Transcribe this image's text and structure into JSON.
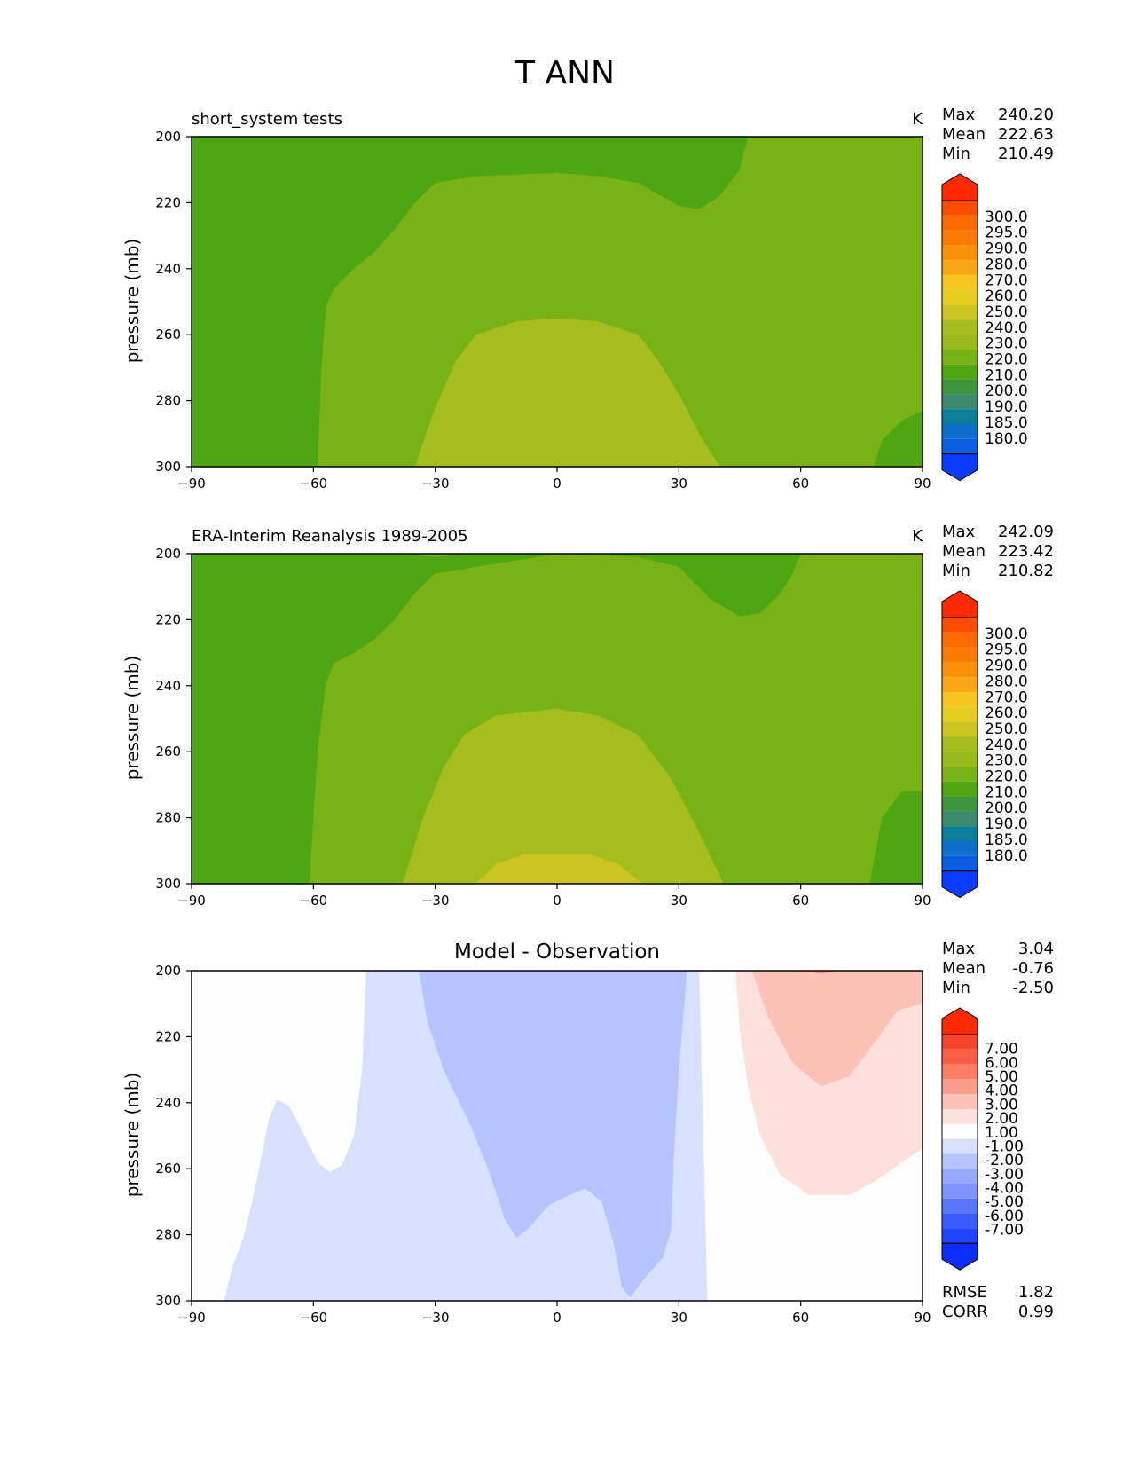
{
  "figure": {
    "title": "T ANN"
  },
  "colors": {
    "abs_levels": [
      "#0a3dff",
      "#0a5ee0",
      "#0e6fcc",
      "#0b7f99",
      "#3a8a6c",
      "#3f9440",
      "#4ea612",
      "#79b215",
      "#99b81a",
      "#a6be1d",
      "#cbc521",
      "#e6cd22",
      "#f8c420",
      "#fba615",
      "#fb9009",
      "#fd7a05",
      "#ff6a00",
      "#ff4d00",
      "#ff2a00"
    ],
    "diff_levels": [
      "#0a2eff",
      "#1f45ff",
      "#3a5cff",
      "#5975ff",
      "#7d92ff",
      "#97a8ff",
      "#b5c3fe",
      "#d8e0fe",
      "#ffffff",
      "#fde0dc",
      "#fdc2b7",
      "#fc9e8c",
      "#fb7f66",
      "#f95e45",
      "#f5452a",
      "#ff2a00"
    ],
    "frame": "#000000"
  },
  "colorbars": {
    "absolute": [
      "300.0",
      "295.0",
      "290.0",
      "280.0",
      "270.0",
      "260.0",
      "250.0",
      "240.0",
      "230.0",
      "220.0",
      "210.0",
      "200.0",
      "190.0",
      "185.0",
      "180.0"
    ],
    "difference": [
      "7.00",
      "6.00",
      "5.00",
      "4.00",
      "3.00",
      "2.00",
      "1.00",
      "-1.00",
      "-2.00",
      "-3.00",
      "-4.00",
      "-5.00",
      "-6.00",
      "-7.00"
    ]
  },
  "chart_data": [
    {
      "type": "heatmap",
      "title": "short_system tests",
      "units": "K",
      "xlabel": "",
      "ylabel": "pressure (mb)",
      "xlim": [
        -90,
        90
      ],
      "ylim": [
        300,
        200
      ],
      "xticks": [
        "−90",
        "−60",
        "−30",
        "0",
        "30",
        "60",
        "90"
      ],
      "yticks": [
        "200",
        "220",
        "240",
        "260",
        "280",
        "300"
      ],
      "stats": {
        "max_label": "Max",
        "max": "240.20",
        "mean_label": "Mean",
        "mean": "222.63",
        "min_label": "Min",
        "min": "210.49"
      },
      "contour_boundaries": [
        {
          "name": "220",
          "points": [
            [
              -90,
              200
            ],
            [
              47,
              200
            ],
            [
              45,
              210
            ],
            [
              40,
              218
            ],
            [
              35,
              222
            ],
            [
              30,
              221
            ],
            [
              20,
              214
            ],
            [
              10,
              212
            ],
            [
              0,
              211
            ],
            [
              -20,
              212
            ],
            [
              -30,
              214
            ],
            [
              -35,
              220
            ],
            [
              -40,
              228
            ],
            [
              -45,
              235
            ],
            [
              -50,
              240
            ],
            [
              -55,
              246
            ],
            [
              -57,
              252
            ],
            [
              -58,
              270
            ],
            [
              -59,
              300
            ],
            [
              -90,
              300
            ]
          ]
        },
        {
          "name": "230",
          "points": [
            [
              -35,
              300
            ],
            [
              -30,
              282
            ],
            [
              -25,
              268
            ],
            [
              -20,
              260
            ],
            [
              -10,
              256
            ],
            [
              0,
              255
            ],
            [
              10,
              256
            ],
            [
              20,
              260
            ],
            [
              25,
              268
            ],
            [
              30,
              278
            ],
            [
              35,
              290
            ],
            [
              40,
              300
            ]
          ]
        },
        {
          "name": "220 (NE corner)",
          "points": [
            [
              90,
              283
            ],
            [
              85,
              286
            ],
            [
              80,
              292
            ],
            [
              78,
              300
            ],
            [
              90,
              300
            ]
          ]
        }
      ]
    },
    {
      "type": "heatmap",
      "title": "ERA-Interim Reanalysis 1989-2005",
      "units": "K",
      "xlabel": "",
      "ylabel": "pressure (mb)",
      "xlim": [
        -90,
        90
      ],
      "ylim": [
        300,
        200
      ],
      "xticks": [
        "−90",
        "−60",
        "−30",
        "0",
        "30",
        "60",
        "90"
      ],
      "yticks": [
        "200",
        "220",
        "240",
        "260",
        "280",
        "300"
      ],
      "stats": {
        "max_label": "Max",
        "max": "242.09",
        "mean_label": "Mean",
        "mean": "223.42",
        "min_label": "Min",
        "min": "210.82"
      },
      "contour_boundaries": [
        {
          "name": "220",
          "points": [
            [
              -90,
              200
            ],
            [
              -40,
              200
            ],
            [
              -30,
              201
            ],
            [
              -20,
              200
            ],
            [
              40,
              200
            ],
            [
              60,
              200
            ],
            [
              58,
              206
            ],
            [
              55,
              212
            ],
            [
              50,
              218
            ],
            [
              45,
              219
            ],
            [
              38,
              214
            ],
            [
              30,
              204
            ],
            [
              20,
              201
            ],
            [
              0,
              200
            ],
            [
              -30,
              206
            ],
            [
              -35,
              212
            ],
            [
              -40,
              220
            ],
            [
              -45,
              226
            ],
            [
              -50,
              230
            ],
            [
              -55,
              233
            ],
            [
              -57,
              240
            ],
            [
              -59,
              260
            ],
            [
              -61,
              300
            ],
            [
              -90,
              300
            ]
          ]
        },
        {
          "name": "230",
          "points": [
            [
              -38,
              300
            ],
            [
              -33,
              280
            ],
            [
              -28,
              265
            ],
            [
              -23,
              255
            ],
            [
              -15,
              249
            ],
            [
              0,
              247
            ],
            [
              10,
              249
            ],
            [
              20,
              255
            ],
            [
              28,
              268
            ],
            [
              34,
              282
            ],
            [
              41,
              300
            ]
          ]
        },
        {
          "name": "240",
          "points": [
            [
              -20,
              300
            ],
            [
              -15,
              294
            ],
            [
              -8,
              291
            ],
            [
              0,
              291
            ],
            [
              8,
              291
            ],
            [
              15,
              294
            ],
            [
              21,
              300
            ]
          ]
        },
        {
          "name": "220 (NE corner)",
          "points": [
            [
              90,
              272
            ],
            [
              85,
              272
            ],
            [
              80,
              280
            ],
            [
              77,
              300
            ],
            [
              90,
              300
            ]
          ]
        }
      ]
    },
    {
      "type": "heatmap",
      "title": "Model - Observation",
      "units": "",
      "xlabel": "",
      "ylabel": "pressure (mb)",
      "xlim": [
        -90,
        90
      ],
      "ylim": [
        300,
        200
      ],
      "xticks": [
        "−90",
        "−60",
        "−30",
        "0",
        "30",
        "60",
        "90"
      ],
      "yticks": [
        "200",
        "220",
        "240",
        "260",
        "280",
        "300"
      ],
      "stats": {
        "max_label": "Max",
        "max": "3.04",
        "mean_label": "Mean",
        "mean": "-0.76",
        "min_label": "Min",
        "min": "-2.50",
        "rmse_label": "RMSE",
        "rmse": "1.82",
        "corr_label": "CORR",
        "corr": "0.99"
      },
      "contour_boundaries": [
        {
          "name": "-1",
          "points": [
            [
              -82,
              300
            ],
            [
              -80,
              290
            ],
            [
              -77,
              280
            ],
            [
              -74,
              264
            ],
            [
              -71,
              245
            ],
            [
              -69,
              239
            ],
            [
              -66,
              241
            ],
            [
              -63,
              248
            ],
            [
              -59,
              258
            ],
            [
              -56,
              261
            ],
            [
              -53,
              259
            ],
            [
              -50,
              250
            ],
            [
              -48,
              230
            ],
            [
              -47,
              200
            ],
            [
              35,
              200
            ],
            [
              37,
              300
            ]
          ]
        },
        {
          "name": "-2",
          "points": [
            [
              -34,
              200
            ],
            [
              -32,
              215
            ],
            [
              -28,
              230
            ],
            [
              -22,
              245
            ],
            [
              -17,
              260
            ],
            [
              -13,
              275
            ],
            [
              -10,
              281
            ],
            [
              -7,
              278
            ],
            [
              -2,
              271
            ],
            [
              3,
              268
            ],
            [
              7,
              266
            ],
            [
              11,
              270
            ],
            [
              14,
              283
            ],
            [
              16,
              296
            ],
            [
              18,
              299
            ],
            [
              21,
              294
            ],
            [
              26,
              287
            ],
            [
              28,
              279
            ],
            [
              29,
              250
            ],
            [
              30,
              230
            ],
            [
              32,
              200
            ]
          ]
        },
        {
          "name": "+1",
          "points": [
            [
              44,
              200
            ],
            [
              45,
              218
            ],
            [
              47,
              235
            ],
            [
              50,
              250
            ],
            [
              55,
              262
            ],
            [
              62,
              268
            ],
            [
              72,
              268
            ],
            [
              78,
              264
            ],
            [
              85,
              258
            ],
            [
              90,
              254
            ],
            [
              90,
              200
            ]
          ]
        },
        {
          "name": "+2",
          "points": [
            [
              48,
              200
            ],
            [
              52,
              214
            ],
            [
              58,
              228
            ],
            [
              65,
              235
            ],
            [
              72,
              232
            ],
            [
              78,
              222
            ],
            [
              84,
              212
            ],
            [
              90,
              210
            ],
            [
              90,
              200
            ]
          ]
        },
        {
          "name": "+3",
          "points": [
            [
              60,
              200
            ],
            [
              65,
              201
            ],
            [
              70,
              200
            ]
          ]
        }
      ]
    }
  ]
}
